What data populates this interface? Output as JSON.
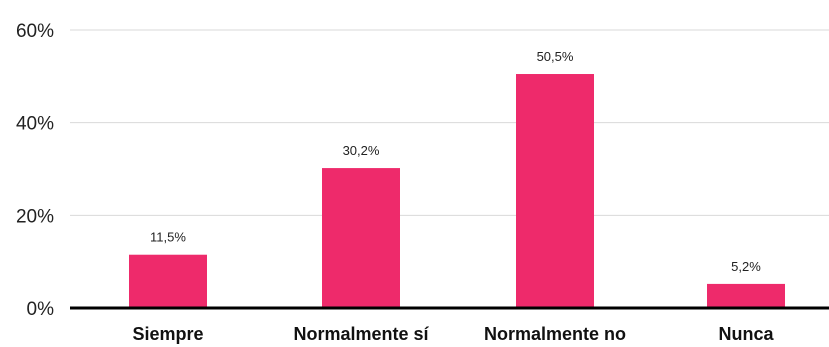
{
  "chart_data": {
    "type": "bar",
    "title": "",
    "xlabel": "",
    "ylabel": "",
    "categories": [
      "Siempre",
      "Normalmente sí",
      "Normalmente no",
      "Nunca"
    ],
    "values": [
      11.5,
      30.2,
      50.5,
      5.2
    ],
    "data_labels": [
      "11,5%",
      "30,2%",
      "50,5%",
      "5,2%"
    ],
    "yticks": [
      0,
      20,
      40,
      60
    ],
    "ytick_labels": [
      "0%",
      "20%",
      "40%",
      "60%"
    ],
    "ylim": [
      0,
      60
    ],
    "grid": true,
    "legend": "none",
    "bar_color": "#ee2a6b"
  }
}
